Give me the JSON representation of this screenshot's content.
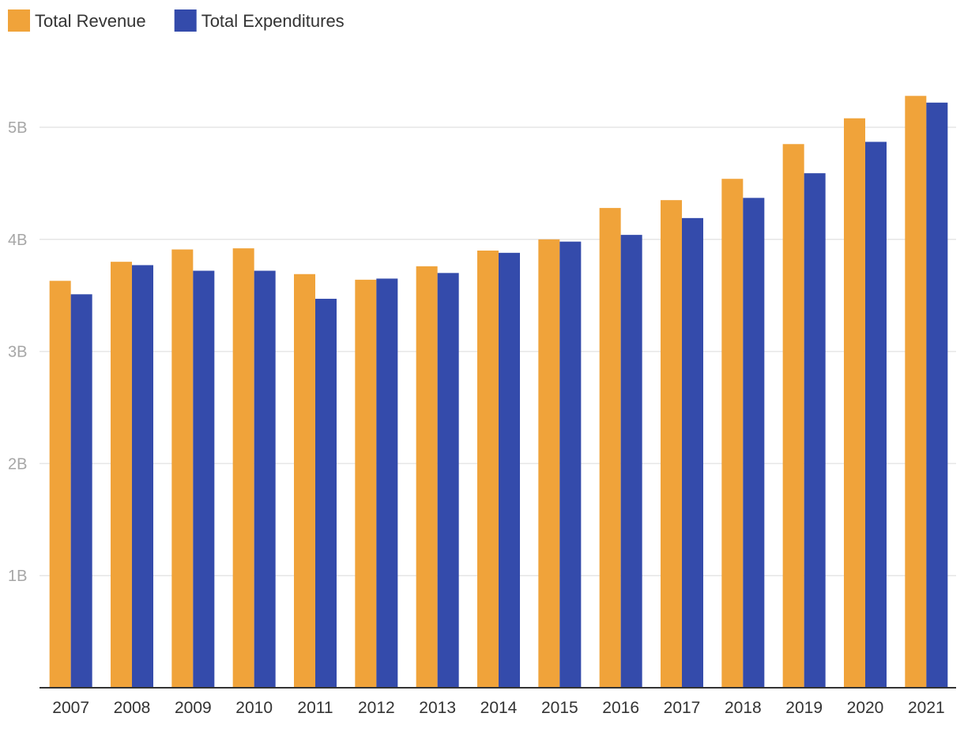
{
  "chart_data": {
    "type": "bar",
    "title": "",
    "xlabel": "",
    "ylabel": "",
    "categories": [
      "2007",
      "2008",
      "2009",
      "2010",
      "2011",
      "2012",
      "2013",
      "2014",
      "2015",
      "2016",
      "2017",
      "2018",
      "2019",
      "2020",
      "2021"
    ],
    "series": [
      {
        "name": "Total Revenue",
        "color": "#f0a33a",
        "values": [
          3.63,
          3.8,
          3.91,
          3.92,
          3.69,
          3.64,
          3.76,
          3.9,
          4.0,
          4.28,
          4.35,
          4.54,
          4.85,
          5.08,
          5.28
        ]
      },
      {
        "name": "Total Expenditures",
        "color": "#344bab",
        "values": [
          3.51,
          3.77,
          3.72,
          3.72,
          3.47,
          3.65,
          3.7,
          3.88,
          3.98,
          4.04,
          4.19,
          4.37,
          4.59,
          4.87,
          5.22
        ]
      }
    ],
    "ylim": [
      0,
      5.5
    ],
    "yticks": [
      {
        "value": 1,
        "label": "1B"
      },
      {
        "value": 2,
        "label": "2B"
      },
      {
        "value": 3,
        "label": "3B"
      },
      {
        "value": 4,
        "label": "4B"
      },
      {
        "value": 5,
        "label": "5B"
      }
    ],
    "grid": true,
    "legend_position": "top-left",
    "gridline_color": "#e6e6e6",
    "axis_color": "#333333"
  }
}
